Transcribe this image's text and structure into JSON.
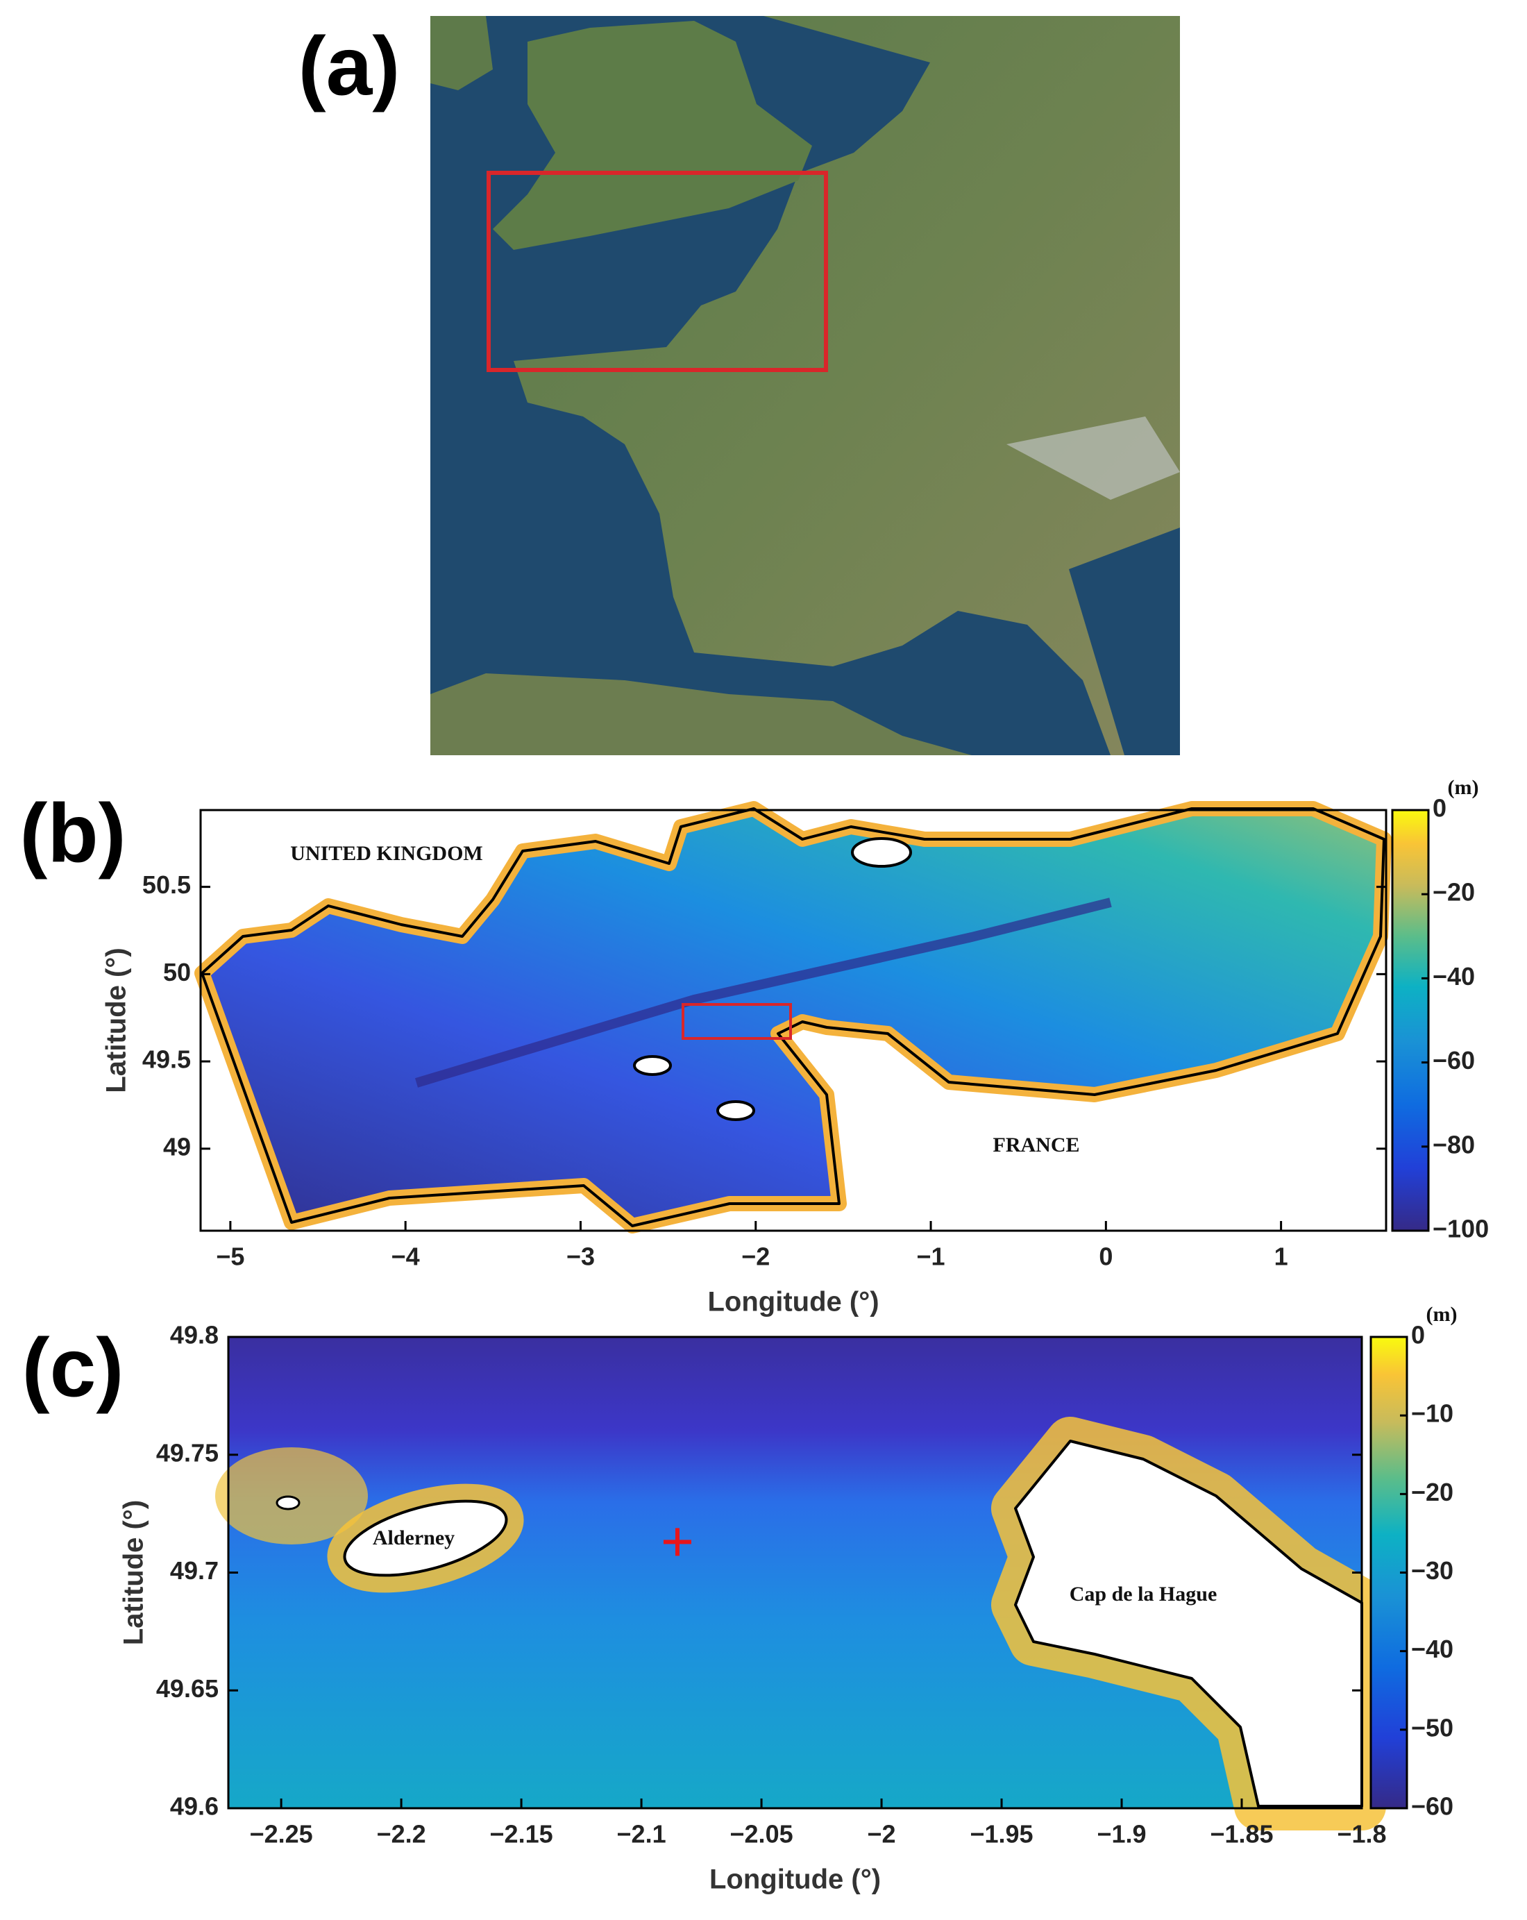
{
  "panels": [
    {
      "label": "(a)"
    },
    {
      "label": "(b)",
      "annotations": [
        "UNITED KINGDOM",
        "FRANCE"
      ],
      "xlabel": "Longitude (°)",
      "ylabel": "Latitude (°)",
      "xlim": [
        -5.17,
        1.6
      ],
      "ylim": [
        48.53,
        50.94
      ],
      "xticks": [
        {
          "value": -5,
          "label": "−5"
        },
        {
          "value": -4,
          "label": "−4"
        },
        {
          "value": -3,
          "label": "−3"
        },
        {
          "value": -2,
          "label": "−2"
        },
        {
          "value": -1,
          "label": "−1"
        },
        0,
        1
      ],
      "yticks": [
        49,
        49.5,
        50,
        50.5
      ],
      "colorbar": {
        "unit": "(m)",
        "lim": [
          -100,
          0
        ],
        "ticks": [
          0,
          {
            "value": -20,
            "label": "−20"
          },
          {
            "value": -40,
            "label": "−40"
          },
          {
            "value": -60,
            "label": "−60"
          },
          {
            "value": -80,
            "label": "−80"
          },
          {
            "value": -100,
            "label": "−100"
          }
        ]
      }
    },
    {
      "label": "(c)",
      "annotations": [
        "Alderney",
        "Cap de la Hague"
      ],
      "xlabel": "Longitude (°)",
      "ylabel": "Latitude (°)",
      "xlim": [
        -2.272,
        -1.8
      ],
      "ylim": [
        49.6,
        49.8
      ],
      "xticks": [
        {
          "value": -2.25,
          "label": "−2.25"
        },
        {
          "value": -2.2,
          "label": "−2.2"
        },
        {
          "value": -2.15,
          "label": "−2.15"
        },
        {
          "value": -2.1,
          "label": "−2.1"
        },
        {
          "value": -2.05,
          "label": "−2.05"
        },
        {
          "value": -2,
          "label": "−2"
        },
        {
          "value": -1.95,
          "label": "−1.95"
        },
        {
          "value": -1.9,
          "label": "−1.9"
        },
        {
          "value": -1.85,
          "label": "−1.85"
        },
        {
          "value": -1.8,
          "label": "−1.8"
        }
      ],
      "yticks": [
        49.6,
        49.65,
        49.7,
        49.75,
        49.8
      ],
      "marker": [
        -2.085,
        49.713
      ],
      "colorbar": {
        "unit": "(m)",
        "lim": [
          -60,
          0
        ],
        "ticks": [
          0,
          {
            "value": -10,
            "label": "−10"
          },
          {
            "value": -20,
            "label": "−20"
          },
          {
            "value": -30,
            "label": "−30"
          },
          {
            "value": -40,
            "label": "−40"
          },
          {
            "value": -50,
            "label": "−50"
          },
          {
            "value": -60,
            "label": "−60"
          }
        ]
      }
    }
  ]
}
